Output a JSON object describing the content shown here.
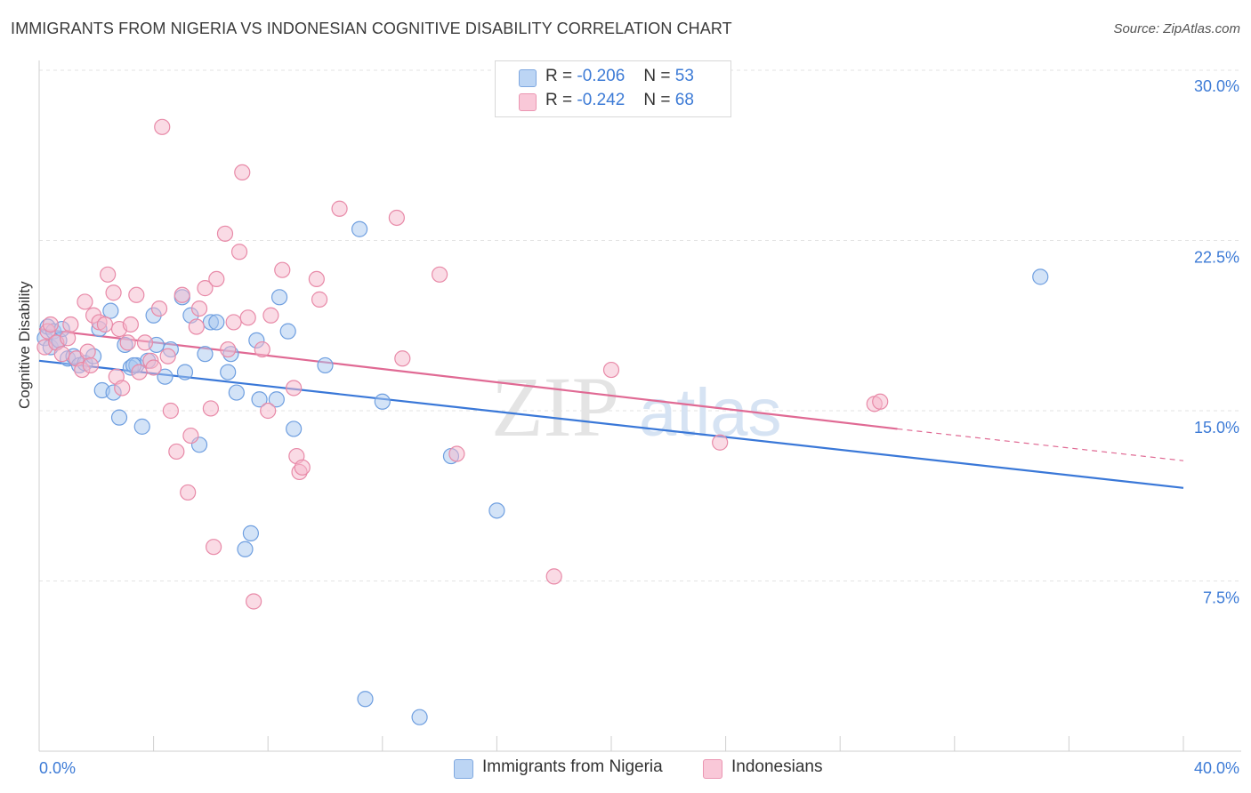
{
  "header": {
    "title": "IMMIGRANTS FROM NIGERIA VS INDONESIAN COGNITIVE DISABILITY CORRELATION CHART",
    "source": "Source: ZipAtlas.com"
  },
  "watermark": {
    "zip": "ZIP",
    "atlas": "atlas"
  },
  "legend": {
    "rows": [
      {
        "r_label": "R =",
        "r_value": "-0.206",
        "n_label": "N =",
        "n_value": "53"
      },
      {
        "r_label": "R =",
        "r_value": "-0.242",
        "n_label": "N =",
        "n_value": "68"
      }
    ]
  },
  "bottom_legend": {
    "items": [
      {
        "label": "Immigrants from Nigeria"
      },
      {
        "label": "Indonesians"
      }
    ]
  },
  "colors": {
    "blue_fill": "#a8c8f0",
    "blue_stroke": "#6f9fe0",
    "blue_line": "#3a78d8",
    "pink_fill": "#f6b8cc",
    "pink_stroke": "#e88aa8",
    "pink_line": "#e06a94",
    "tick_label": "#3d7bd6",
    "grid": "#e3e3e3"
  },
  "chart_data": {
    "type": "scatter",
    "title": "IMMIGRANTS FROM NIGERIA VS INDONESIAN COGNITIVE DISABILITY CORRELATION CHART",
    "xlabel": "",
    "ylabel": "Cognitive Disability",
    "xlim": [
      0,
      40
    ],
    "ylim": [
      0,
      30
    ],
    "y_ticks": [
      7.5,
      15.0,
      22.5,
      30.0
    ],
    "y_tick_labels": [
      "7.5%",
      "15.0%",
      "22.5%",
      "30.0%"
    ],
    "x_tick_labels": [
      "0.0%",
      "40.0%"
    ],
    "grid": true,
    "legend_position": "top-center",
    "series": [
      {
        "name": "Immigrants from Nigeria",
        "r": -0.206,
        "n": 53,
        "trend": {
          "x0": 0,
          "y0": 17.2,
          "x1": 40,
          "y1": 11.6
        },
        "points": [
          [
            0.2,
            18.2
          ],
          [
            0.3,
            18.7
          ],
          [
            0.4,
            17.8
          ],
          [
            0.5,
            18.5
          ],
          [
            0.6,
            18.0
          ],
          [
            0.7,
            18.1
          ],
          [
            0.8,
            18.6
          ],
          [
            1.0,
            17.3
          ],
          [
            1.2,
            17.4
          ],
          [
            1.4,
            17.0
          ],
          [
            1.6,
            17.1
          ],
          [
            1.9,
            17.4
          ],
          [
            2.1,
            18.6
          ],
          [
            2.2,
            15.9
          ],
          [
            2.5,
            19.4
          ],
          [
            2.6,
            15.8
          ],
          [
            2.8,
            14.7
          ],
          [
            3.0,
            17.9
          ],
          [
            3.2,
            16.9
          ],
          [
            3.4,
            17.0
          ],
          [
            3.6,
            14.3
          ],
          [
            3.8,
            17.2
          ],
          [
            4.0,
            19.2
          ],
          [
            4.1,
            17.9
          ],
          [
            4.4,
            16.5
          ],
          [
            4.6,
            17.7
          ],
          [
            5.0,
            20.0
          ],
          [
            5.1,
            16.7
          ],
          [
            5.3,
            19.2
          ],
          [
            5.6,
            13.5
          ],
          [
            5.8,
            17.5
          ],
          [
            6.0,
            18.9
          ],
          [
            6.2,
            18.9
          ],
          [
            6.6,
            16.7
          ],
          [
            6.7,
            17.5
          ],
          [
            6.9,
            15.8
          ],
          [
            7.2,
            8.9
          ],
          [
            7.4,
            9.6
          ],
          [
            7.6,
            18.1
          ],
          [
            7.7,
            15.5
          ],
          [
            8.3,
            15.5
          ],
          [
            8.4,
            20.0
          ],
          [
            8.7,
            18.5
          ],
          [
            8.9,
            14.2
          ],
          [
            10.0,
            17.0
          ],
          [
            11.2,
            23.0
          ],
          [
            11.4,
            2.3
          ],
          [
            12.0,
            15.4
          ],
          [
            13.3,
            1.5
          ],
          [
            14.4,
            13.0
          ],
          [
            16.0,
            10.6
          ],
          [
            35.0,
            20.9
          ],
          [
            3.3,
            17.0
          ]
        ]
      },
      {
        "name": "Indonesians",
        "r": -0.242,
        "n": 68,
        "trend": {
          "x0": 0,
          "y0": 18.6,
          "x1": 30,
          "y1": 14.2,
          "dash_x1": 40,
          "dash_y1": 12.8
        },
        "points": [
          [
            0.2,
            17.8
          ],
          [
            0.3,
            18.5
          ],
          [
            0.4,
            18.8
          ],
          [
            0.6,
            18.0
          ],
          [
            0.8,
            17.5
          ],
          [
            1.0,
            18.2
          ],
          [
            1.1,
            18.8
          ],
          [
            1.3,
            17.3
          ],
          [
            1.5,
            16.8
          ],
          [
            1.6,
            19.8
          ],
          [
            1.7,
            17.6
          ],
          [
            1.8,
            17.0
          ],
          [
            1.9,
            19.2
          ],
          [
            2.1,
            18.9
          ],
          [
            2.3,
            18.8
          ],
          [
            2.4,
            21.0
          ],
          [
            2.6,
            20.2
          ],
          [
            2.7,
            16.5
          ],
          [
            2.8,
            18.6
          ],
          [
            2.9,
            16.0
          ],
          [
            3.1,
            18.0
          ],
          [
            3.2,
            18.8
          ],
          [
            3.4,
            20.1
          ],
          [
            3.5,
            16.7
          ],
          [
            3.7,
            18.0
          ],
          [
            3.9,
            17.2
          ],
          [
            4.0,
            16.9
          ],
          [
            4.2,
            19.5
          ],
          [
            4.3,
            27.5
          ],
          [
            4.5,
            17.4
          ],
          [
            4.6,
            15.0
          ],
          [
            4.8,
            13.2
          ],
          [
            5.0,
            20.1
          ],
          [
            5.2,
            11.4
          ],
          [
            5.3,
            13.9
          ],
          [
            5.5,
            18.7
          ],
          [
            5.6,
            19.5
          ],
          [
            5.8,
            20.4
          ],
          [
            6.0,
            15.1
          ],
          [
            6.1,
            9.0
          ],
          [
            6.2,
            20.8
          ],
          [
            6.5,
            22.8
          ],
          [
            6.6,
            17.7
          ],
          [
            6.8,
            18.9
          ],
          [
            7.0,
            22.0
          ],
          [
            7.1,
            25.5
          ],
          [
            7.3,
            19.1
          ],
          [
            7.5,
            6.6
          ],
          [
            7.8,
            17.7
          ],
          [
            8.0,
            15.0
          ],
          [
            8.1,
            19.2
          ],
          [
            8.5,
            21.2
          ],
          [
            8.9,
            16.0
          ],
          [
            9.0,
            13.0
          ],
          [
            9.1,
            12.3
          ],
          [
            9.2,
            12.5
          ],
          [
            9.7,
            20.8
          ],
          [
            9.8,
            19.9
          ],
          [
            10.5,
            23.9
          ],
          [
            12.5,
            23.5
          ],
          [
            12.7,
            17.3
          ],
          [
            14.0,
            21.0
          ],
          [
            14.6,
            13.1
          ],
          [
            18.0,
            7.7
          ],
          [
            20.0,
            16.8
          ],
          [
            23.8,
            13.6
          ],
          [
            29.2,
            15.3
          ],
          [
            29.4,
            15.4
          ]
        ]
      }
    ]
  }
}
